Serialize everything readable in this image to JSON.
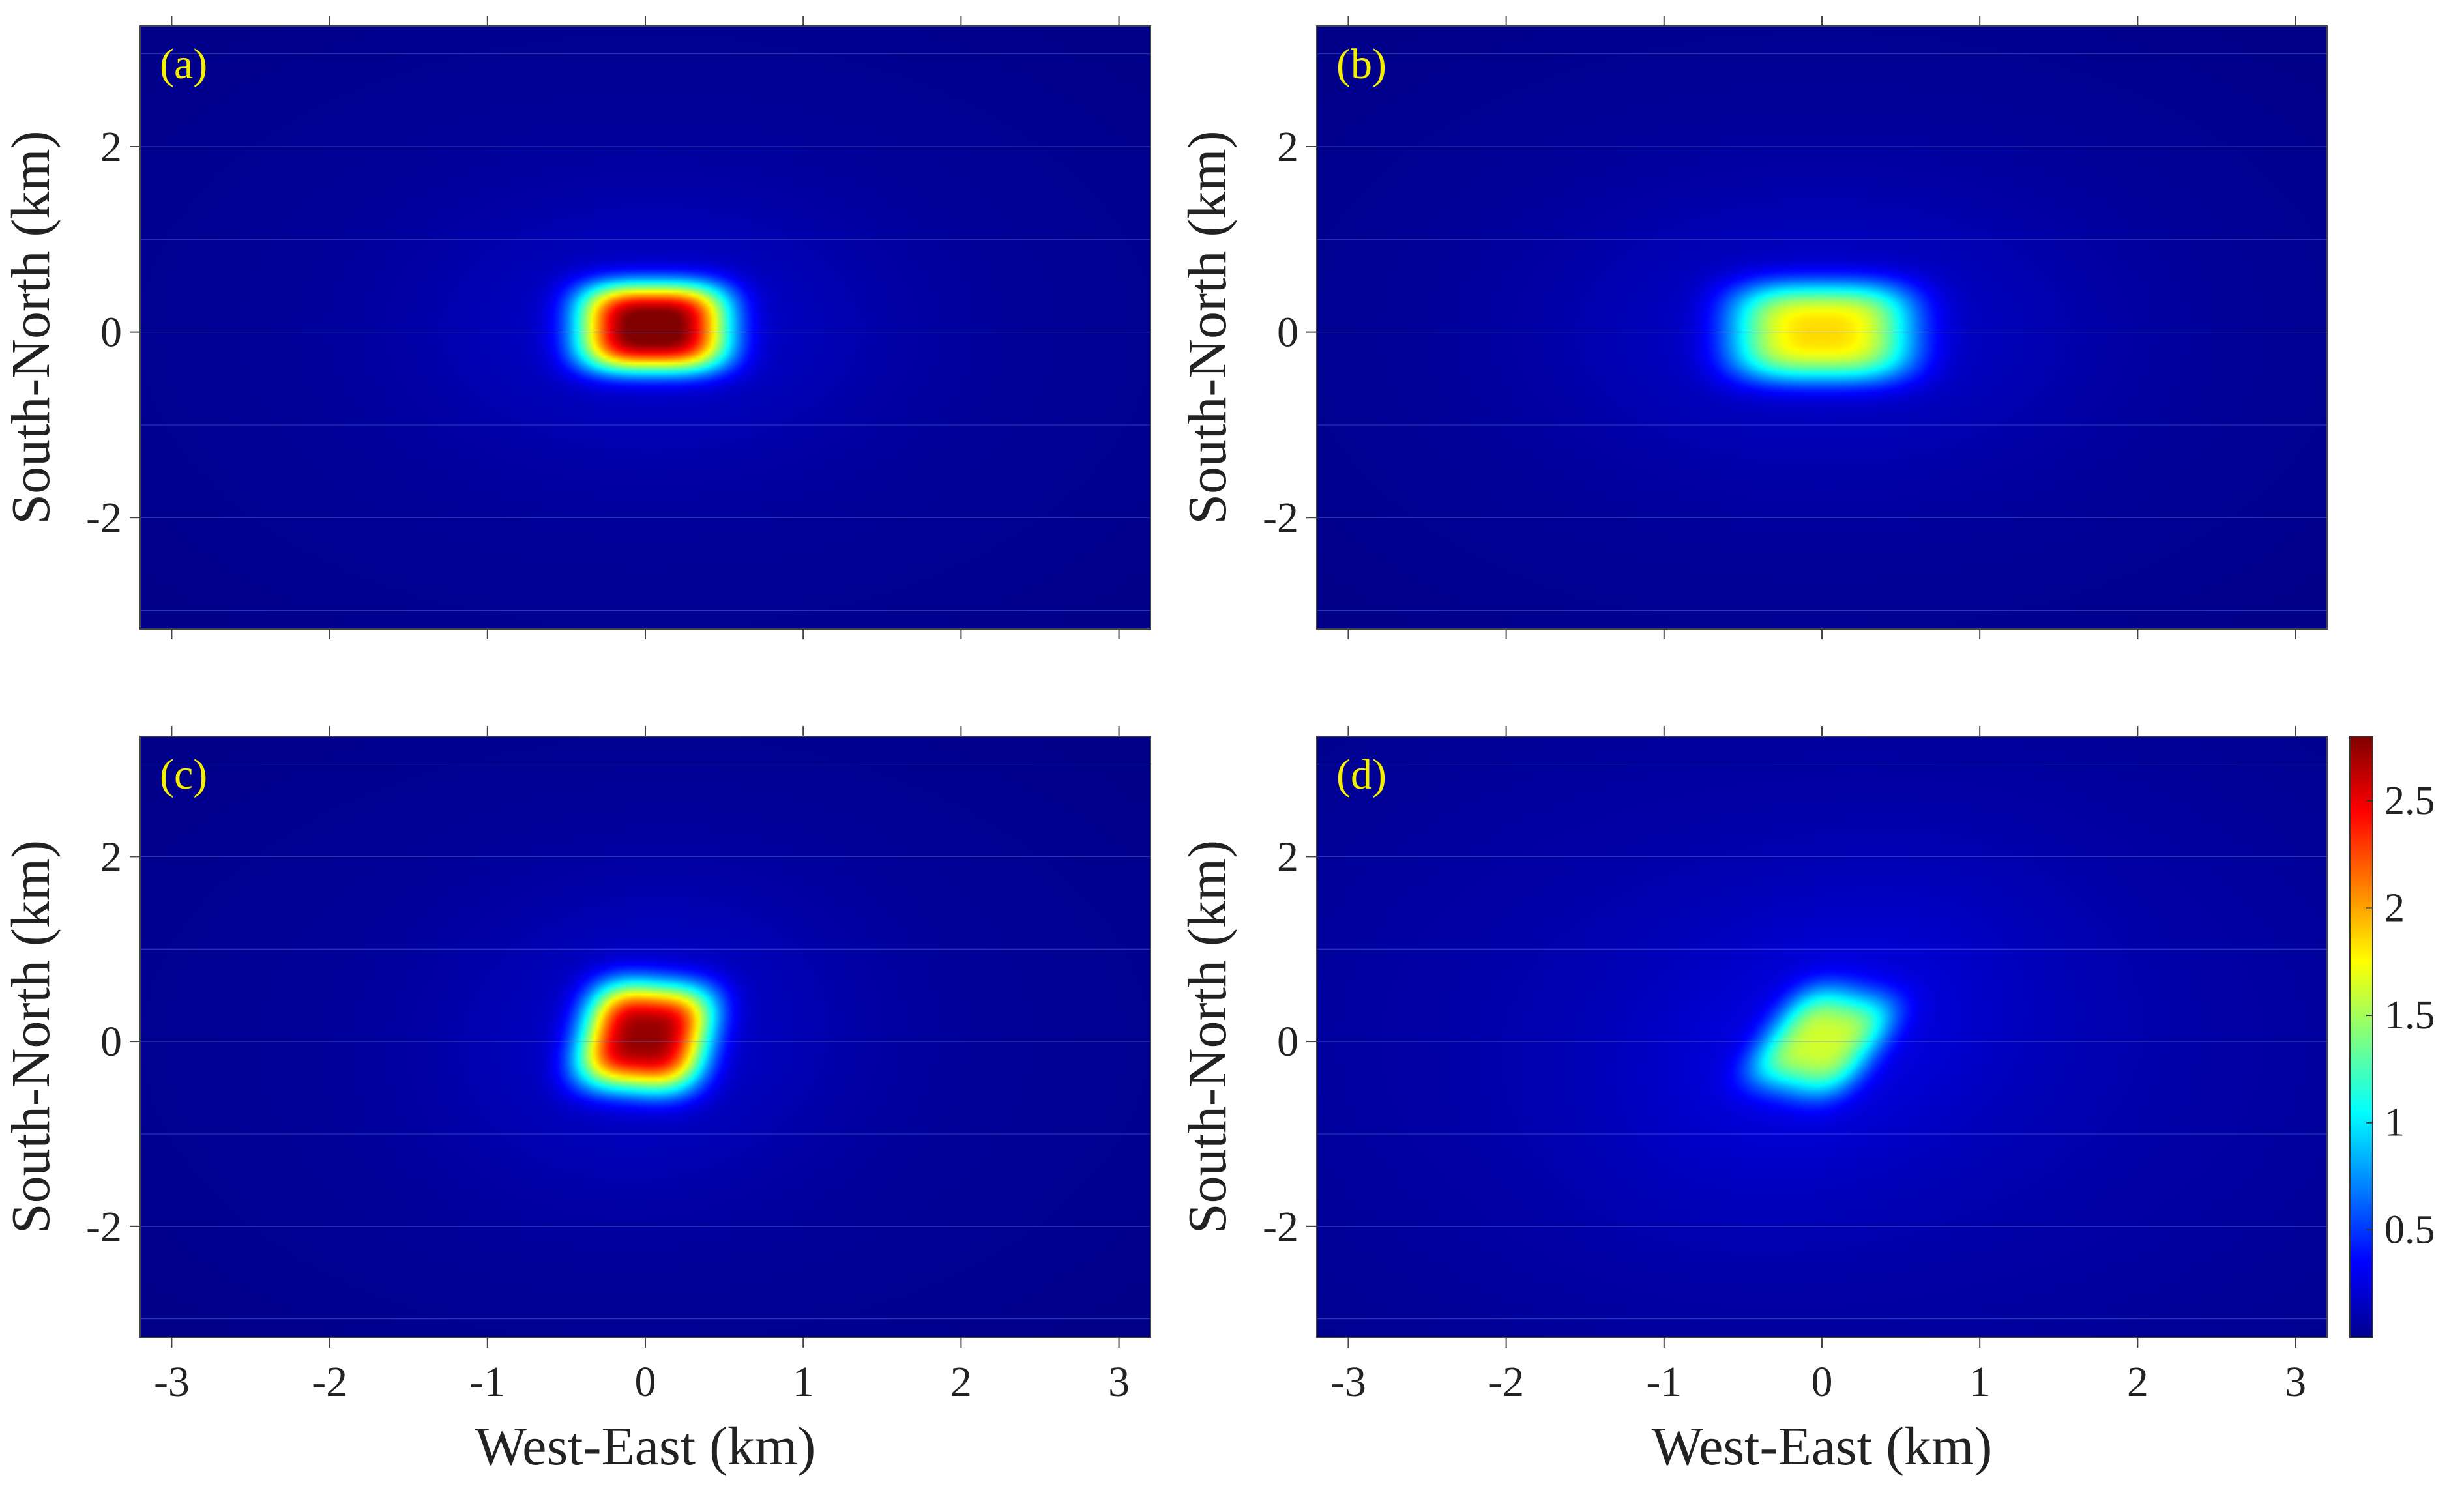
{
  "chart_data": {
    "type": "heatmap",
    "colormap": "jet",
    "colorbar": {
      "range": [
        0,
        2.8
      ],
      "ticks": [
        0.5,
        1,
        1.5,
        2,
        2.5
      ],
      "tick_labels": [
        "0.5",
        "1",
        "1.5",
        "2",
        "2.5"
      ]
    },
    "xlim": [
      -3.2,
      3.2
    ],
    "ylim": [
      -3.2,
      3.3
    ],
    "xticks": [
      -3,
      -2,
      -1,
      0,
      1,
      2,
      3
    ],
    "xtick_labels": [
      "-3",
      "-2",
      "-1",
      "0",
      "1",
      "2",
      "3"
    ],
    "yticks": [
      2,
      0,
      -2
    ],
    "ytick_labels": [
      "2",
      "0",
      "-2"
    ],
    "xlabel": "West-East (km)",
    "ylabel": "South-North (km)",
    "panels": [
      {
        "label": "(a)",
        "peak_value": 2.8,
        "center": [
          0.05,
          0.05
        ],
        "half_width_x": 0.45,
        "half_width_y": 0.45,
        "rotation_deg": 0,
        "background": 0.1
      },
      {
        "label": "(b)",
        "peak_value": 1.75,
        "center": [
          0.0,
          0.0
        ],
        "half_width_x": 0.55,
        "half_width_y": 0.5,
        "rotation_deg": 0,
        "background": 0.1
      },
      {
        "label": "(c)",
        "peak_value": 2.65,
        "center": [
          0.0,
          0.05
        ],
        "half_width_x": 0.38,
        "half_width_y": 0.55,
        "rotation_deg": -8,
        "background": 0.1
      },
      {
        "label": "(d)",
        "peak_value": 1.45,
        "center": [
          0.0,
          0.0
        ],
        "half_width_x": 0.33,
        "half_width_y": 0.55,
        "rotation_deg": -22,
        "background": 0.18
      }
    ]
  }
}
